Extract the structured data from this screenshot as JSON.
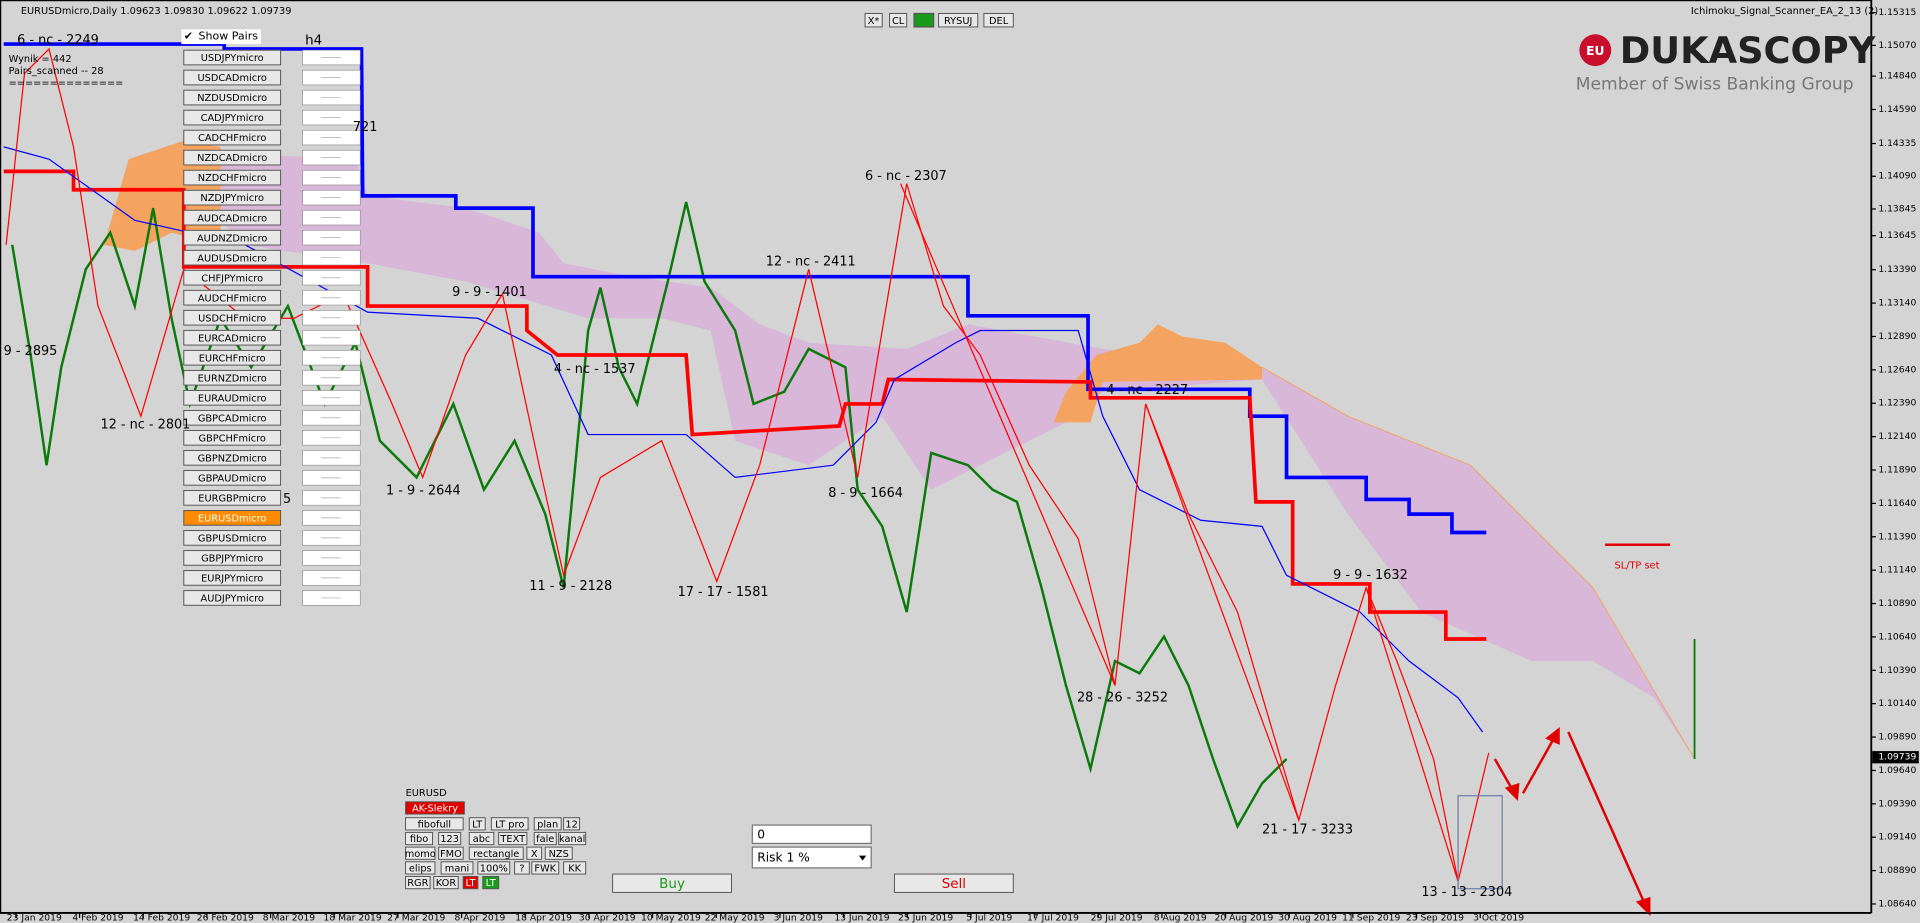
{
  "header": {
    "symbol_info": "EURUSDmicro,Daily  1.09623 1.09830 1.09622 1.09739",
    "ea_name": "Ichimoku_Signal_Scanner_EA_2_13 (2)"
  },
  "toolbar": [
    "X*",
    "CL",
    "RYSUJ",
    "DEL"
  ],
  "broker": {
    "badge": "EU",
    "name": "DUKASCOPY",
    "tagline": "Member of Swiss Banking Group"
  },
  "scanner": {
    "wynik": "Wynik = 442",
    "pairs_scanned": "Pairs_scanned -- 28",
    "separator": "==============",
    "show_pairs": "Show Pairs",
    "timeframe": "h4",
    "pairs": [
      "USDJPYmicro",
      "USDCADmicro",
      "NZDUSDmicro",
      "CADJPYmicro",
      "CADCHFmicro",
      "NZDCADmicro",
      "NZDCHFmicro",
      "NZDJPYmicro",
      "AUDCADmicro",
      "AUDNZDmicro",
      "AUDUSDmicro",
      "CHFJPYmicro",
      "AUDCHFmicro",
      "USDCHFmicro",
      "EURCADmicro",
      "EURCHFmicro",
      "EURNZDmicro",
      "EURAUDmicro",
      "GBPCADmicro",
      "GBPCHFmicro",
      "GBPNZDmicro",
      "GBPAUDmicro",
      "EURGBPmicro",
      "EURUSDmicro",
      "GBPUSDmicro",
      "GBPJPYmicro",
      "EURJPYmicro",
      "AUDJPYmicro"
    ],
    "active_index": 23
  },
  "annotations": [
    "6 - nc - 2249",
    "9 - 2895",
    "12 - nc - 2801",
    "721",
    "1 - 9 - 2644",
    "9 - 9 - 1401",
    "4 - nc - 1537",
    "11 - 9 - 2128",
    "17 - 17 - 1581",
    "12 - nc - 2411",
    "6 - nc - 2307",
    "8 - 9 - 1664",
    "4 - nc - 2227",
    "28 - 26 - 3252",
    "9 - 9 - 1632",
    "21 - 17 - 3233",
    "13 - 13 - 2304",
    "5"
  ],
  "signal_label": "SL/TP set",
  "price_axis": {
    "ylim": [
      1.0858,
      1.1541
    ],
    "ticks": [
      {
        "value": 1.15315,
        "label": "1.15315"
      },
      {
        "value": 1.1507,
        "label": "1.15070"
      },
      {
        "value": 1.1484,
        "label": "1.14840"
      },
      {
        "value": 1.1459,
        "label": "1.14590"
      },
      {
        "value": 1.14335,
        "label": "1.14335"
      },
      {
        "value": 1.1409,
        "label": "1.14090"
      },
      {
        "value": 1.13845,
        "label": "1.13845"
      },
      {
        "value": 1.13645,
        "label": "1.13645"
      },
      {
        "value": 1.1339,
        "label": "1.13390"
      },
      {
        "value": 1.1314,
        "label": "1.13140"
      },
      {
        "value": 1.1289,
        "label": "1.12890"
      },
      {
        "value": 1.1264,
        "label": "1.12640"
      },
      {
        "value": 1.1239,
        "label": "1.12390"
      },
      {
        "value": 1.1214,
        "label": "1.12140"
      },
      {
        "value": 1.1189,
        "label": "1.11890"
      },
      {
        "value": 1.1164,
        "label": "1.11640"
      },
      {
        "value": 1.1139,
        "label": "1.11390"
      },
      {
        "value": 1.1114,
        "label": "1.11140"
      },
      {
        "value": 1.1089,
        "label": "1.10890"
      },
      {
        "value": 1.1064,
        "label": "1.10640"
      },
      {
        "value": 1.1039,
        "label": "1.10390"
      },
      {
        "value": 1.1014,
        "label": "1.10140"
      },
      {
        "value": 1.0989,
        "label": "1.09890"
      },
      {
        "value": 1.0964,
        "label": "1.09640"
      },
      {
        "value": 1.0939,
        "label": "1.09390"
      },
      {
        "value": 1.0914,
        "label": "1.09140"
      },
      {
        "value": 1.0889,
        "label": "1.08890"
      },
      {
        "value": 1.0864,
        "label": "1.08640"
      }
    ],
    "current": {
      "value": 1.09739,
      "label": "1.09739"
    }
  },
  "time_axis": [
    "23 Jan 2019",
    "4 Feb 2019",
    "14 Feb 2019",
    "26 Feb 2019",
    "8 Mar 2019",
    "18 Mar 2019",
    "27 Mar 2019",
    "8 Apr 2019",
    "18 Apr 2019",
    "30 Apr 2019",
    "10 May 2019",
    "22 May 2019",
    "3 Jun 2019",
    "13 Jun 2019",
    "25 Jun 2019",
    "5 Jul 2019",
    "17 Jul 2019",
    "29 Jul 2019",
    "8 Aug 2019",
    "20 Aug 2019",
    "30 Aug 2019",
    "11 Sep 2019",
    "23 Sep 2019",
    "3 Oct 2019"
  ],
  "panel": {
    "symbol": "EURUSD",
    "alert": "AK-Slekry",
    "buttons": [
      "fibofull",
      "LT",
      "LT pro",
      "plan",
      "12",
      "fibo",
      "123",
      "abc",
      "TEXT",
      "fale",
      "kanal",
      "momo",
      "FMO",
      "rectangle",
      "X",
      "NZS",
      "elips",
      "mani",
      "100%",
      "?",
      "FWK",
      "KK",
      "RGR",
      "KOR",
      "LT",
      "LT"
    ],
    "lot": "0",
    "risk": "Risk 1 %",
    "buy": "Buy",
    "sell": "Sell"
  }
}
